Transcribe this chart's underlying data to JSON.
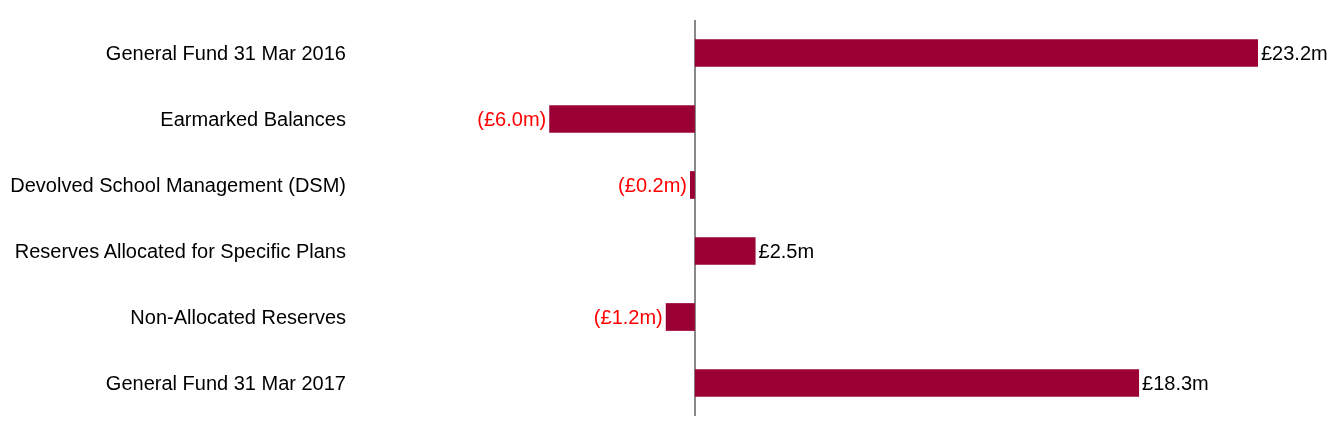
{
  "chart_data": {
    "type": "bar",
    "orientation": "horizontal",
    "categories": [
      "General Fund 31 Mar 2016",
      "Earmarked Balances",
      "Devolved School Management (DSM)",
      "Reserves Allocated for Specific Plans",
      "Non-Allocated Reserves",
      "General Fund 31 Mar 2017"
    ],
    "values": [
      23.2,
      -6.0,
      -0.2,
      2.5,
      -1.2,
      18.3
    ],
    "value_labels": [
      "£23.2m",
      "(£6.0m)",
      "(£0.2m)",
      "£2.5m",
      "(£1.2m)",
      "£18.3m"
    ],
    "color": "#9b0034"
  }
}
